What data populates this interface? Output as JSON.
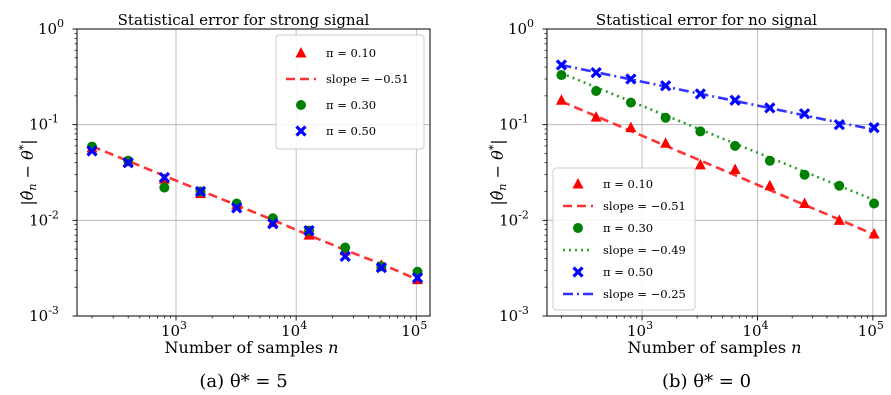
{
  "chart_data": [
    {
      "type": "scatter",
      "title": "Statistical error for strong signal",
      "xlabel": "Number of samples n",
      "ylabel": "|θ̂n − θ*|",
      "caption": "(a) θ* = 5",
      "xscale": "log",
      "yscale": "log",
      "xlim": [
        150,
        130000
      ],
      "ylim": [
        0.001,
        1
      ],
      "x_ticks": [
        "10^3",
        "10^4",
        "10^5"
      ],
      "y_ticks": [
        "10^-3",
        "10^-2",
        "10^-1",
        "10^0"
      ],
      "grid": true,
      "legend_position": "top-right",
      "x": [
        200,
        400,
        800,
        1600,
        3200,
        6400,
        12800,
        25600,
        51200,
        102400
      ],
      "series": [
        {
          "name": "π = 0.10",
          "kind": "scatter",
          "marker": "triangle",
          "color": "#ff0000",
          "values": [
            0.057,
            0.041,
            0.027,
            0.019,
            0.0145,
            0.0095,
            0.007,
            0.0048,
            0.0034,
            0.0024
          ]
        },
        {
          "name": "slope = −0.51",
          "kind": "line",
          "dash": "dashed",
          "color": "#ff3333",
          "values": [
            0.0594,
            0.0417,
            0.0292,
            0.0205,
            0.0144,
            0.0101,
            0.007,
            0.0049,
            0.0035,
            0.0024
          ]
        },
        {
          "name": "π = 0.30",
          "kind": "scatter",
          "marker": "circle",
          "color": "#008000",
          "values": [
            0.059,
            0.042,
            0.022,
            0.02,
            0.015,
            0.0105,
            0.0078,
            0.0052,
            0.0033,
            0.0029
          ]
        },
        {
          "name": "π = 0.50",
          "kind": "scatter",
          "marker": "x",
          "color": "#0000ff",
          "values": [
            0.053,
            0.04,
            0.028,
            0.02,
            0.0135,
            0.0092,
            0.0078,
            0.0042,
            0.0032,
            0.0025
          ]
        }
      ]
    },
    {
      "type": "scatter",
      "title": "Statistical error for no signal",
      "xlabel": "Number of samples n",
      "ylabel": "|θ̂n − θ*|",
      "caption": "(b) θ* = 0",
      "xscale": "log",
      "yscale": "log",
      "xlim": [
        150,
        130000
      ],
      "ylim": [
        0.001,
        1
      ],
      "x_ticks": [
        "10^3",
        "10^4",
        "10^5"
      ],
      "y_ticks": [
        "10^-3",
        "10^-2",
        "10^-1",
        "10^0"
      ],
      "grid": true,
      "legend_position": "bottom-left",
      "x": [
        200,
        400,
        800,
        1600,
        3200,
        6400,
        12800,
        25600,
        51200,
        102400
      ],
      "series": [
        {
          "name": "π = 0.10",
          "kind": "scatter",
          "marker": "triangle",
          "color": "#ff0000",
          "values": [
            0.18,
            0.12,
            0.093,
            0.064,
            0.038,
            0.034,
            0.023,
            0.015,
            0.01,
            0.0072
          ]
        },
        {
          "name": "slope = −0.51",
          "kind": "line",
          "dash": "dashed",
          "color": "#ff3333",
          "values": [
            0.175,
            0.1226,
            0.0859,
            0.0602,
            0.0422,
            0.0296,
            0.0207,
            0.0145,
            0.0102,
            0.0071
          ]
        },
        {
          "name": "π = 0.30",
          "kind": "scatter",
          "marker": "circle",
          "color": "#008000",
          "values": [
            0.33,
            0.225,
            0.17,
            0.118,
            0.085,
            0.06,
            0.042,
            0.03,
            0.023,
            0.015
          ]
        },
        {
          "name": "slope = −0.49",
          "kind": "line",
          "dash": "dotted",
          "color": "#2ca02c",
          "values": [
            0.345,
            0.246,
            0.175,
            0.125,
            0.089,
            0.0634,
            0.0452,
            0.0322,
            0.0229,
            0.0163
          ]
        },
        {
          "name": "π = 0.50",
          "kind": "scatter",
          "marker": "x",
          "color": "#0000ff",
          "values": [
            0.42,
            0.35,
            0.3,
            0.255,
            0.21,
            0.18,
            0.15,
            0.13,
            0.1,
            0.093
          ]
        },
        {
          "name": "slope = −0.25",
          "kind": "line",
          "dash": "dashdot",
          "color": "#3333ff",
          "values": [
            0.42,
            0.353,
            0.297,
            0.25,
            0.21,
            0.177,
            0.149,
            0.125,
            0.105,
            0.089
          ]
        }
      ]
    }
  ]
}
